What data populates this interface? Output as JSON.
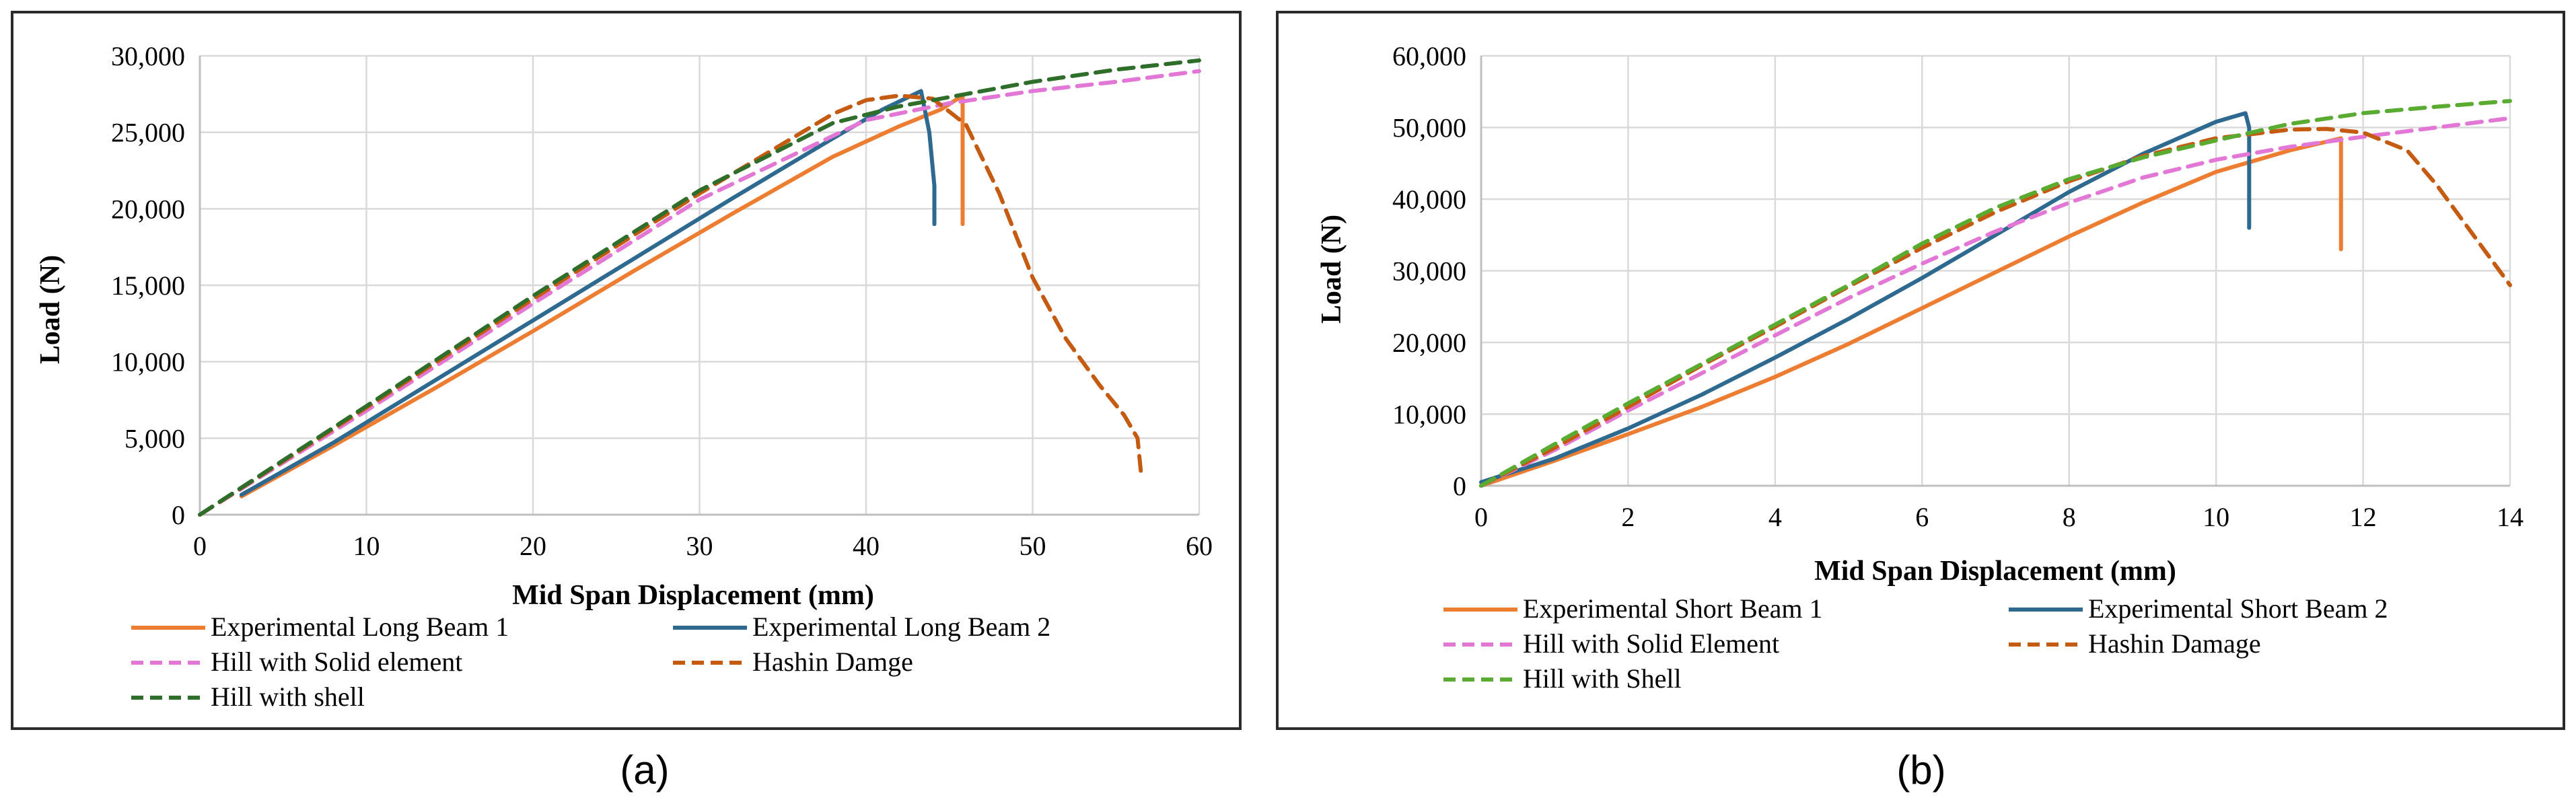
{
  "chart_data": [
    {
      "type": "line",
      "caption": "(a)",
      "xlabel": "Mid Span Displacement (mm)",
      "ylabel": "Load (N)",
      "xlim": [
        0,
        60
      ],
      "ylim": [
        0,
        30000
      ],
      "xticks": [
        0,
        10,
        20,
        30,
        40,
        50,
        60
      ],
      "yticks": [
        0,
        5000,
        10000,
        15000,
        20000,
        25000,
        30000
      ],
      "xtick_labels": [
        "0",
        "10",
        "20",
        "30",
        "40",
        "50",
        "60"
      ],
      "ytick_labels": [
        "0",
        "5,000",
        "10,000",
        "15,000",
        "20,000",
        "25,000",
        "30,000"
      ],
      "grid": true,
      "legend": "bottom",
      "series": [
        {
          "name": "Experimental Long Beam 1",
          "color": "#ed7d31",
          "dash": "solid",
          "x": [
            2.5,
            8,
            14,
            20,
            26,
            32,
            38,
            42,
            44.5,
            45.8,
            45.8
          ],
          "y": [
            1200,
            4500,
            8200,
            12000,
            15900,
            19700,
            23400,
            25400,
            26500,
            27400,
            19000
          ]
        },
        {
          "name": "Experimental Long Beam 2",
          "color": "#2e6a8f",
          "dash": "solid",
          "x": [
            2.5,
            8,
            14,
            20,
            26,
            32,
            38,
            41,
            43.3,
            43.8,
            44.1,
            44.1
          ],
          "y": [
            1300,
            4700,
            8700,
            12700,
            16700,
            20700,
            24600,
            26500,
            27700,
            25000,
            21500,
            19000
          ]
        },
        {
          "name": "Hill with Solid element",
          "color": "#e377d6",
          "dash": "dash",
          "x": [
            0,
            10,
            20,
            30,
            40,
            45,
            50,
            55,
            60
          ],
          "y": [
            0,
            6800,
            13800,
            20600,
            25800,
            26900,
            27700,
            28300,
            29000
          ]
        },
        {
          "name": "Hashin Damge",
          "color": "#c55a11",
          "dash": "dash",
          "x": [
            0,
            10,
            20,
            30,
            38,
            40,
            42,
            44,
            46,
            48,
            50,
            52,
            54,
            55.5,
            56.3,
            56.5
          ],
          "y": [
            0,
            7000,
            14100,
            21000,
            26200,
            27100,
            27400,
            27200,
            25500,
            21000,
            15500,
            11500,
            8500,
            6500,
            5000,
            2800
          ]
        },
        {
          "name": "Hill with shell",
          "color": "#2f6e2a",
          "dash": "dash",
          "x": [
            0,
            10,
            20,
            30,
            38,
            42,
            46,
            50,
            55,
            60
          ],
          "y": [
            0,
            7100,
            14300,
            21200,
            25600,
            26700,
            27500,
            28300,
            29100,
            29700
          ]
        }
      ],
      "legend_labels": [
        "Experimental Long Beam 1",
        "Experimental Long Beam 2",
        "Hill with Solid element",
        "Hashin Damge",
        "Hill with shell"
      ]
    },
    {
      "type": "line",
      "caption": "(b)",
      "xlabel": "Mid Span Displacement (mm)",
      "ylabel": "Load (N)",
      "xlim": [
        0,
        14
      ],
      "ylim": [
        0,
        60000
      ],
      "xticks": [
        0,
        2,
        4,
        6,
        8,
        10,
        12,
        14
      ],
      "yticks": [
        0,
        10000,
        20000,
        30000,
        40000,
        50000,
        60000
      ],
      "xtick_labels": [
        "0",
        "2",
        "4",
        "6",
        "8",
        "10",
        "12",
        "14"
      ],
      "ytick_labels": [
        "0",
        "10,000",
        "20,000",
        "30,000",
        "40,000",
        "50,000",
        "60,000"
      ],
      "grid": true,
      "legend": "bottom",
      "series": [
        {
          "name": "Experimental Short Beam 1",
          "color": "#ed7d31",
          "dash": "solid",
          "x": [
            0,
            1,
            2,
            3,
            4,
            5,
            6,
            7,
            8,
            9,
            10,
            11,
            11.7,
            11.7
          ],
          "y": [
            0,
            3500,
            7200,
            11000,
            15200,
            19800,
            24800,
            29800,
            34800,
            39500,
            43800,
            46800,
            48500,
            33000
          ]
        },
        {
          "name": "Experimental Short Beam 2",
          "color": "#2e6a8f",
          "dash": "solid",
          "x": [
            0,
            1,
            2,
            3,
            4,
            5,
            6,
            7,
            8,
            9,
            10,
            10.4,
            10.45,
            10.45
          ],
          "y": [
            500,
            3800,
            8000,
            12700,
            17900,
            23300,
            29000,
            35000,
            41000,
            46300,
            50800,
            52000,
            50000,
            36000
          ]
        },
        {
          "name": "Hill with Solid Element",
          "color": "#e377d6",
          "dash": "dash",
          "x": [
            0,
            1,
            2,
            3,
            4,
            5,
            6,
            7,
            8,
            9,
            10,
            11,
            12,
            13,
            14
          ],
          "y": [
            0,
            5000,
            10500,
            15700,
            21000,
            26200,
            31000,
            35500,
            39500,
            43000,
            45500,
            47300,
            48700,
            50000,
            51300
          ]
        },
        {
          "name": "Hashin Damage",
          "color": "#c55a11",
          "dash": "dash",
          "x": [
            0,
            1,
            2,
            3,
            4,
            5,
            6,
            7,
            8,
            9,
            10,
            11,
            11.5,
            12,
            12.6,
            13,
            13.5,
            14
          ],
          "y": [
            0,
            5300,
            11000,
            16800,
            22200,
            27800,
            33200,
            38200,
            42500,
            46000,
            48500,
            49700,
            49800,
            49300,
            46800,
            42000,
            35000,
            28000
          ]
        },
        {
          "name": "Hill with Shell",
          "color": "#5aab32",
          "dash": "dash",
          "x": [
            0,
            1,
            2,
            3,
            4,
            5,
            6,
            7,
            8,
            9,
            10,
            11,
            12,
            13,
            14
          ],
          "y": [
            0,
            5800,
            11500,
            17000,
            22500,
            28000,
            33800,
            38800,
            42800,
            45800,
            48200,
            50500,
            52000,
            52900,
            53700
          ]
        }
      ],
      "legend_labels": [
        "Experimental Short Beam 1",
        "Experimental Short Beam 2",
        "Hill with Solid Element",
        "Hashin Damage",
        "Hill with Shell"
      ]
    }
  ]
}
